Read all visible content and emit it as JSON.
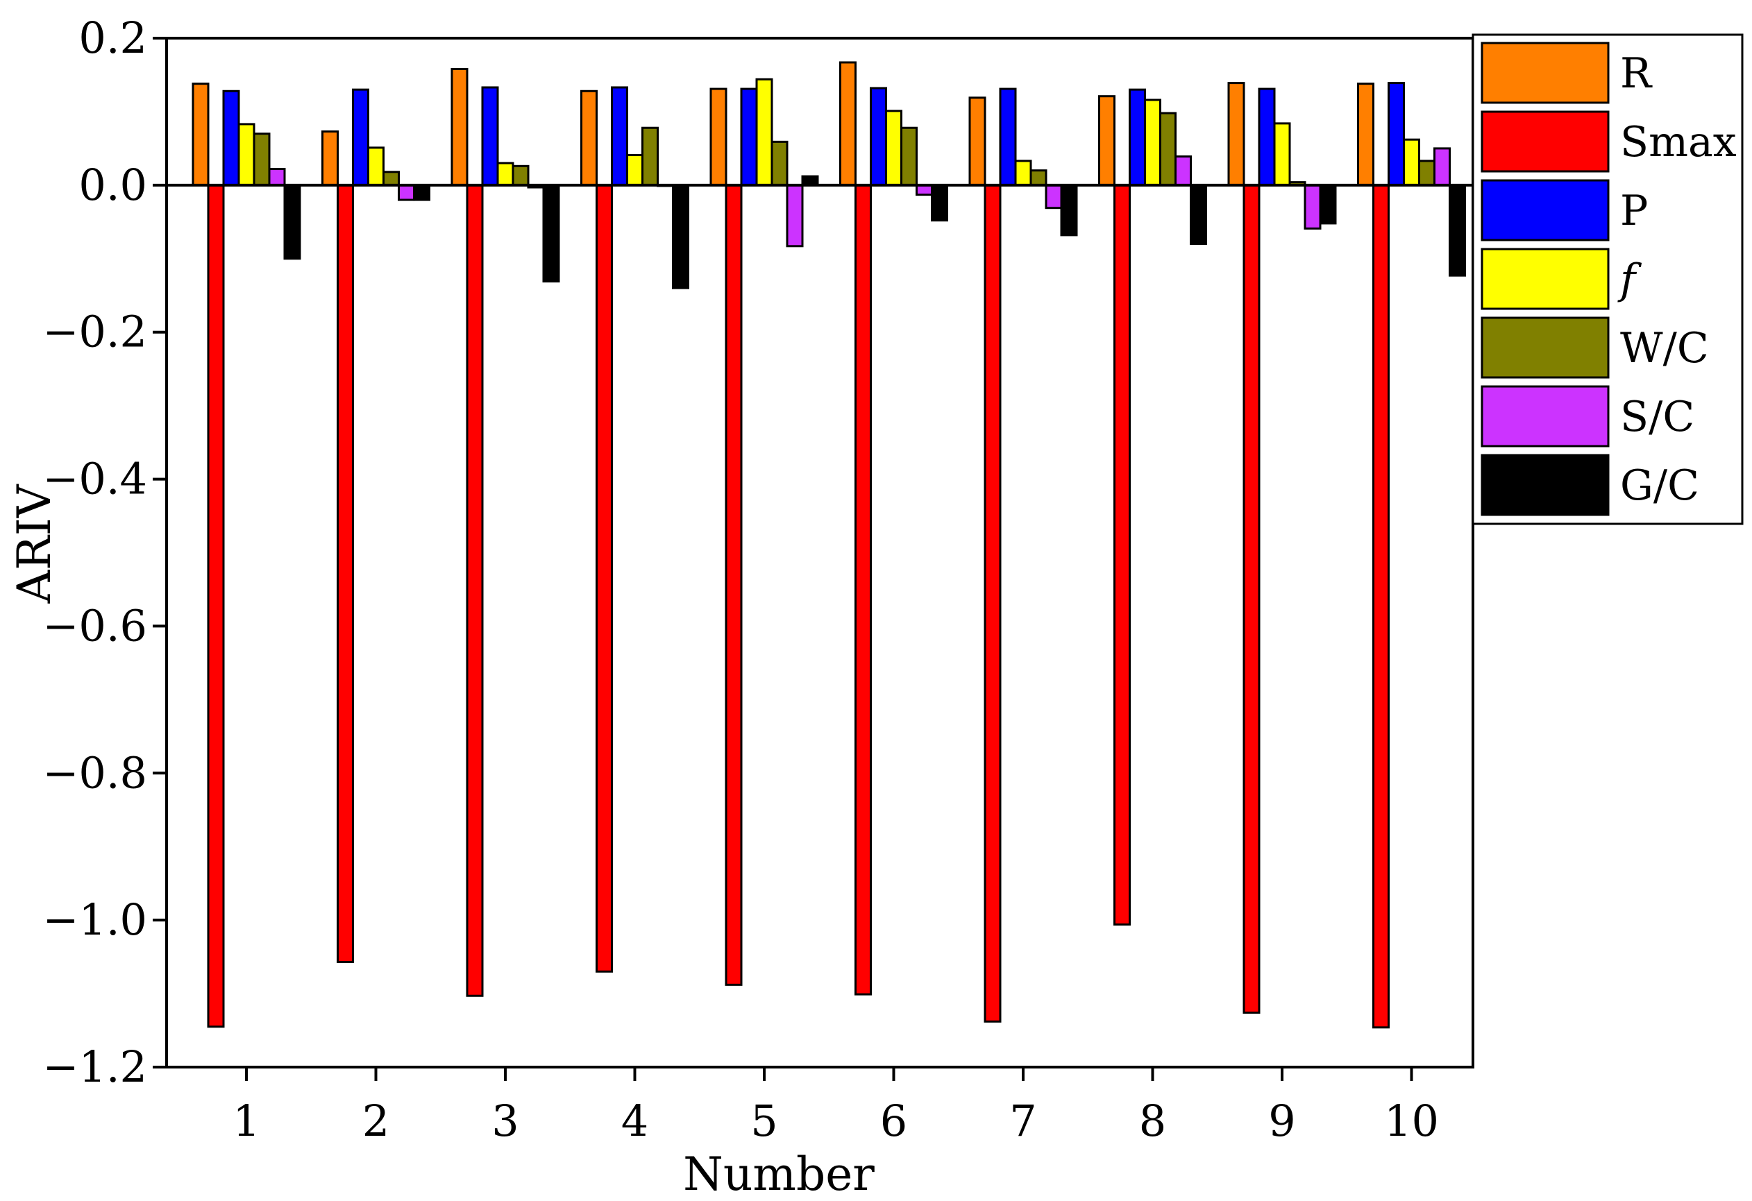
{
  "chart_data": {
    "type": "bar",
    "xlabel": "Number",
    "ylabel": "ARIV",
    "ylim": [
      -1.2,
      0.2
    ],
    "yticks": [
      0.2,
      0.0,
      -0.2,
      -0.4,
      -0.6,
      -0.8,
      -1.0,
      -1.2
    ],
    "ytick_labels": [
      "0.2",
      "0.0",
      "−0.2",
      "−0.4",
      "−0.6",
      "−0.8",
      "−1.0",
      "−1.2"
    ],
    "categories": [
      "1",
      "2",
      "3",
      "4",
      "5",
      "6",
      "7",
      "8",
      "9",
      "10"
    ],
    "legend_position": "top-right",
    "grid": false,
    "series": [
      {
        "name": "R",
        "color": "#ff7f00",
        "values": [
          0.138,
          0.073,
          0.158,
          0.128,
          0.131,
          0.167,
          0.119,
          0.121,
          0.139,
          0.138
        ]
      },
      {
        "name": "Smax",
        "color": "#ff0000",
        "values": [
          -1.145,
          -1.057,
          -1.103,
          -1.07,
          -1.088,
          -1.101,
          -1.138,
          -1.006,
          -1.126,
          -1.146
        ]
      },
      {
        "name": "P",
        "color": "#0000ff",
        "values": [
          0.128,
          0.13,
          0.133,
          0.133,
          0.131,
          0.132,
          0.131,
          0.13,
          0.131,
          0.139
        ]
      },
      {
        "name": "f",
        "color": "#ffff00",
        "values": [
          0.083,
          0.051,
          0.03,
          0.041,
          0.144,
          0.101,
          0.033,
          0.116,
          0.084,
          0.062
        ]
      },
      {
        "name": "W/C",
        "color": "#808000",
        "values": [
          0.07,
          0.018,
          0.026,
          0.078,
          0.059,
          0.078,
          0.02,
          0.098,
          0.004,
          0.033
        ]
      },
      {
        "name": "S/C",
        "color": "#cc33ff",
        "values": [
          0.022,
          -0.02,
          -0.003,
          -0.001,
          -0.083,
          -0.013,
          -0.031,
          0.039,
          -0.059,
          0.05
        ]
      },
      {
        "name": "G/C",
        "color": "#000000",
        "values": [
          -0.1,
          -0.02,
          -0.131,
          -0.14,
          0.012,
          -0.048,
          -0.068,
          -0.08,
          -0.052,
          -0.123
        ]
      }
    ]
  }
}
